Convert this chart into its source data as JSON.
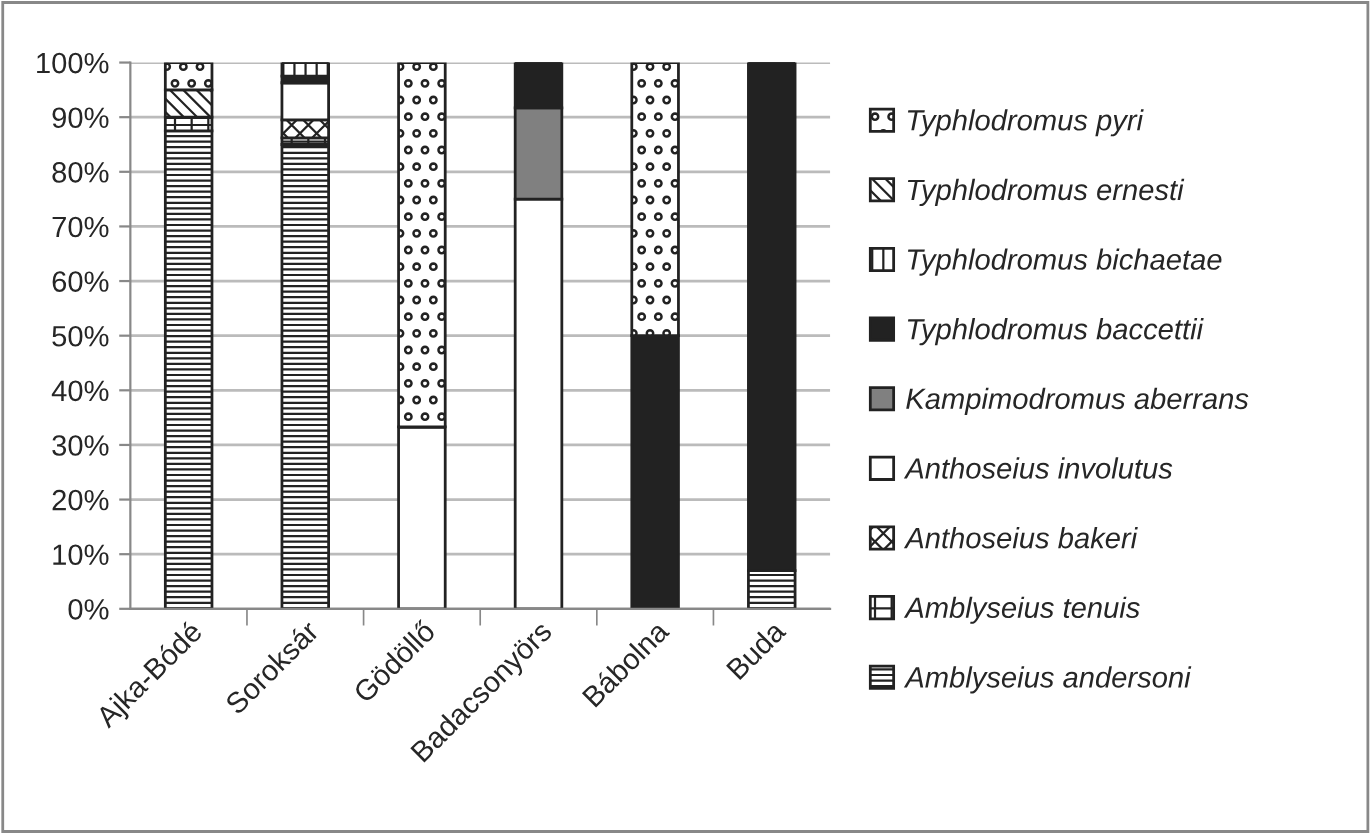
{
  "chart_data": {
    "type": "bar",
    "stacked": true,
    "categories": [
      "Ajka-Bódé",
      "Soroksár",
      "Gödöllő",
      "Badacsonyörs",
      "Bábolna",
      "Buda"
    ],
    "series": [
      {
        "name": "Amblyseius andersoni",
        "color": "#222222",
        "values": [
          87.5,
          85,
          0,
          0,
          0,
          7
        ]
      },
      {
        "name": "Amblyseius tenuis",
        "color": "#222222",
        "values": [
          2.5,
          1.2,
          0,
          0,
          0,
          0
        ]
      },
      {
        "name": "Anthoseius bakeri",
        "color": "#222222",
        "values": [
          0,
          3.3,
          0,
          0,
          0,
          0
        ]
      },
      {
        "name": "Anthoseius involutus",
        "color": "#ffffff",
        "values": [
          0,
          6.8,
          33.3,
          75,
          0,
          0
        ]
      },
      {
        "name": "Kampimodromus aberrans",
        "color": "#808080",
        "values": [
          0,
          0,
          0,
          16.7,
          0,
          0
        ]
      },
      {
        "name": "Typhlodromus baccettii",
        "color": "#222222",
        "values": [
          0,
          1.2,
          0,
          8.3,
          50,
          93
        ]
      },
      {
        "name": "Typhlodromus bichaetae",
        "color": "#222222",
        "values": [
          0,
          2.5,
          0,
          0,
          0,
          0
        ]
      },
      {
        "name": "Typhlodromus ernesti",
        "color": "#222222",
        "values": [
          5,
          0,
          0,
          0,
          0,
          0
        ]
      },
      {
        "name": "Typhlodromus pyri",
        "color": "#222222",
        "values": [
          5,
          0,
          66.7,
          0,
          50,
          0
        ]
      }
    ],
    "ylim": [
      0,
      100
    ],
    "yticks": [
      {
        "value": 0,
        "label": "0%"
      },
      {
        "value": 10,
        "label": "10%"
      },
      {
        "value": 20,
        "label": "20%"
      },
      {
        "value": 30,
        "label": "30%"
      },
      {
        "value": 40,
        "label": "40%"
      },
      {
        "value": 50,
        "label": "50%"
      },
      {
        "value": 60,
        "label": "60%"
      },
      {
        "value": 70,
        "label": "70%"
      },
      {
        "value": 80,
        "label": "80%"
      },
      {
        "value": 90,
        "label": "90%"
      },
      {
        "value": 100,
        "label": "100%"
      }
    ],
    "grid": "y",
    "legend": "right"
  }
}
